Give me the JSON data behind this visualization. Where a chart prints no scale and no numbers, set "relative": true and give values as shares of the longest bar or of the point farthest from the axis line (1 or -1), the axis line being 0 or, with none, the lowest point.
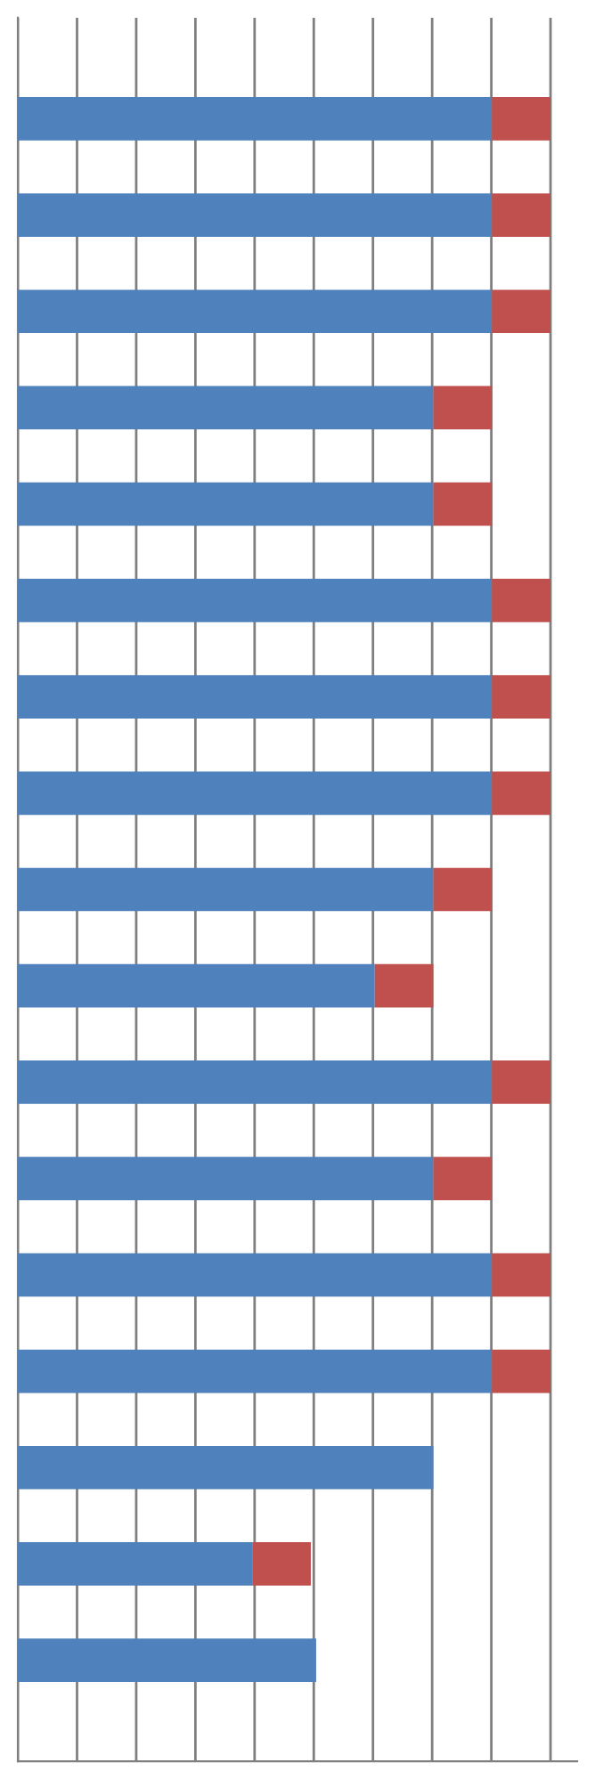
{
  "chart_data": {
    "type": "bar",
    "orientation": "horizontal",
    "stacked": true,
    "relative": true,
    "grid": "x",
    "categories": [
      null,
      null,
      null,
      null,
      null,
      null,
      null,
      null,
      null,
      null,
      null,
      null,
      null,
      null,
      null,
      null,
      null
    ],
    "series": [
      {
        "color": "#4f81bd",
        "values": [
          0.89,
          0.89,
          0.89,
          0.78,
          0.78,
          0.89,
          0.89,
          0.89,
          0.78,
          0.67,
          0.89,
          0.78,
          0.89,
          0.89,
          0.78,
          0.44,
          0.56
        ]
      },
      {
        "color": "#c0504d",
        "values": [
          0.11,
          0.11,
          0.11,
          0.11,
          0.11,
          0.11,
          0.11,
          0.11,
          0.11,
          0.11,
          0.11,
          0.11,
          0.11,
          0.11,
          null,
          0.11,
          null
        ]
      }
    ]
  }
}
